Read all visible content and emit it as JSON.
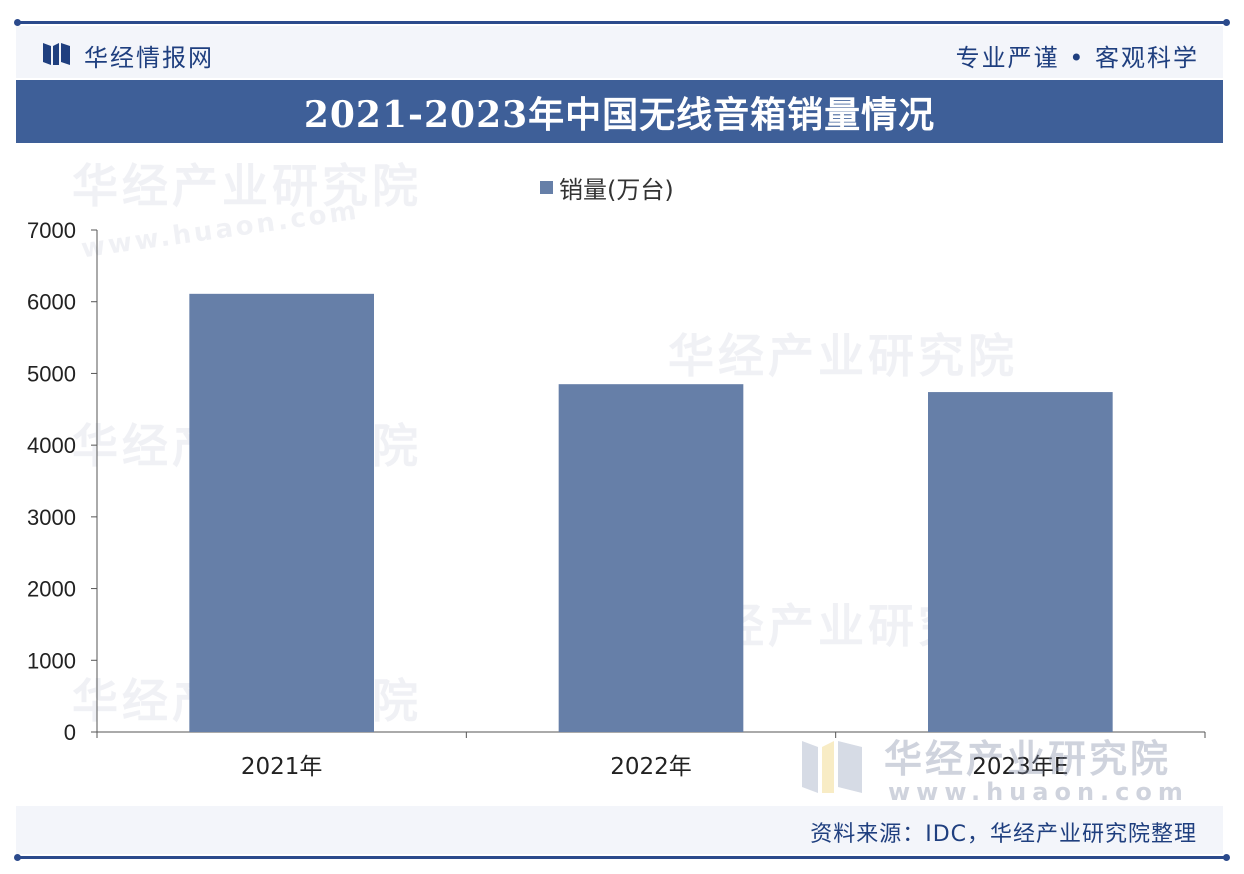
{
  "header": {
    "site_name": "华经情报网",
    "slogan": "专业严谨 • 客观科学",
    "logo_icon": "huajing-logo-icon"
  },
  "title": "2021-2023年中国无线音箱销量情况",
  "watermark": {
    "brand": "华经产业研究院",
    "url": "www.huaon.com"
  },
  "chart_data": {
    "type": "bar",
    "title": "2021-2023年中国无线音箱销量情况",
    "categories": [
      "2021年",
      "2022年",
      "2023年E"
    ],
    "series": [
      {
        "name": "销量(万台)",
        "values": [
          6110,
          4850,
          4740
        ],
        "color": "#667fa8"
      }
    ],
    "xlabel": "",
    "ylabel": "",
    "ylim": [
      0,
      7000
    ],
    "yticks": [
      0,
      1000,
      2000,
      3000,
      4000,
      5000,
      6000,
      7000
    ],
    "grid": false,
    "legend": "top-center"
  },
  "footer": {
    "source": "资料来源：IDC，华经产业研究院整理"
  },
  "colors": {
    "brand_blue": "#3e5f98",
    "bar": "#667fa8",
    "rule": "#2b4a8c"
  }
}
